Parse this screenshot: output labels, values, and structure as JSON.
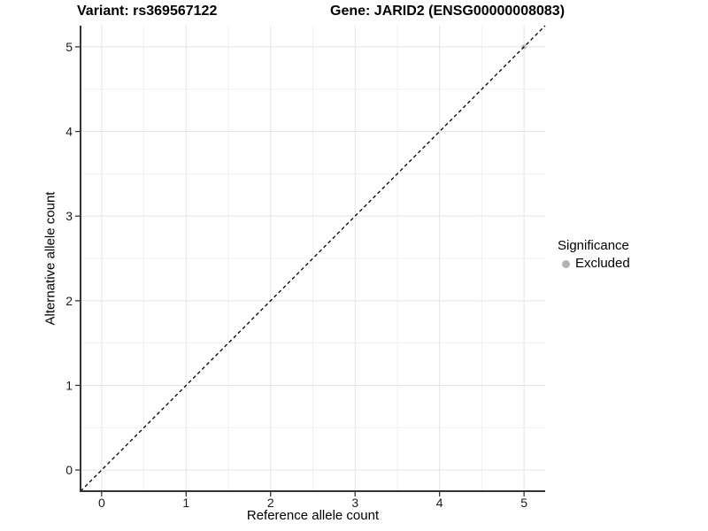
{
  "titles": {
    "variant": "Variant: rs369567122",
    "gene": "Gene: JARID2 (ENSG00000008083)"
  },
  "legend": {
    "title": "Significance",
    "items": [
      {
        "label": "Excluded",
        "color": "#b3b3b3"
      }
    ]
  },
  "chart_data": {
    "type": "scatter",
    "xlabel": "Reference allele count",
    "ylabel": "Alternative allele count",
    "xlim": [
      -0.25,
      5.25
    ],
    "ylim": [
      -0.25,
      5.25
    ],
    "xticks": [
      0,
      1,
      2,
      3,
      4,
      5
    ],
    "yticks": [
      0,
      1,
      2,
      3,
      4,
      5
    ],
    "minor_xticks": [
      0.5,
      1.5,
      2.5,
      3.5,
      4.5
    ],
    "minor_yticks": [
      0.5,
      1.5,
      2.5,
      3.5,
      4.5
    ],
    "grid": "on",
    "legend_position": "right",
    "series": [
      {
        "name": "Excluded",
        "color": "#bdbdbd",
        "points": [
          {
            "x": 5,
            "y": 5
          }
        ]
      }
    ],
    "reference_line": {
      "kind": "identity",
      "slope": 1,
      "intercept": 0,
      "style": "dashed",
      "color": "#000000"
    },
    "colors": {
      "grid_major": "#e4e4e4",
      "grid_minor": "#f1f1f1",
      "axis_line": "#333333",
      "tick_mark": "#333333",
      "tick_text": "#1a1a1a"
    }
  }
}
